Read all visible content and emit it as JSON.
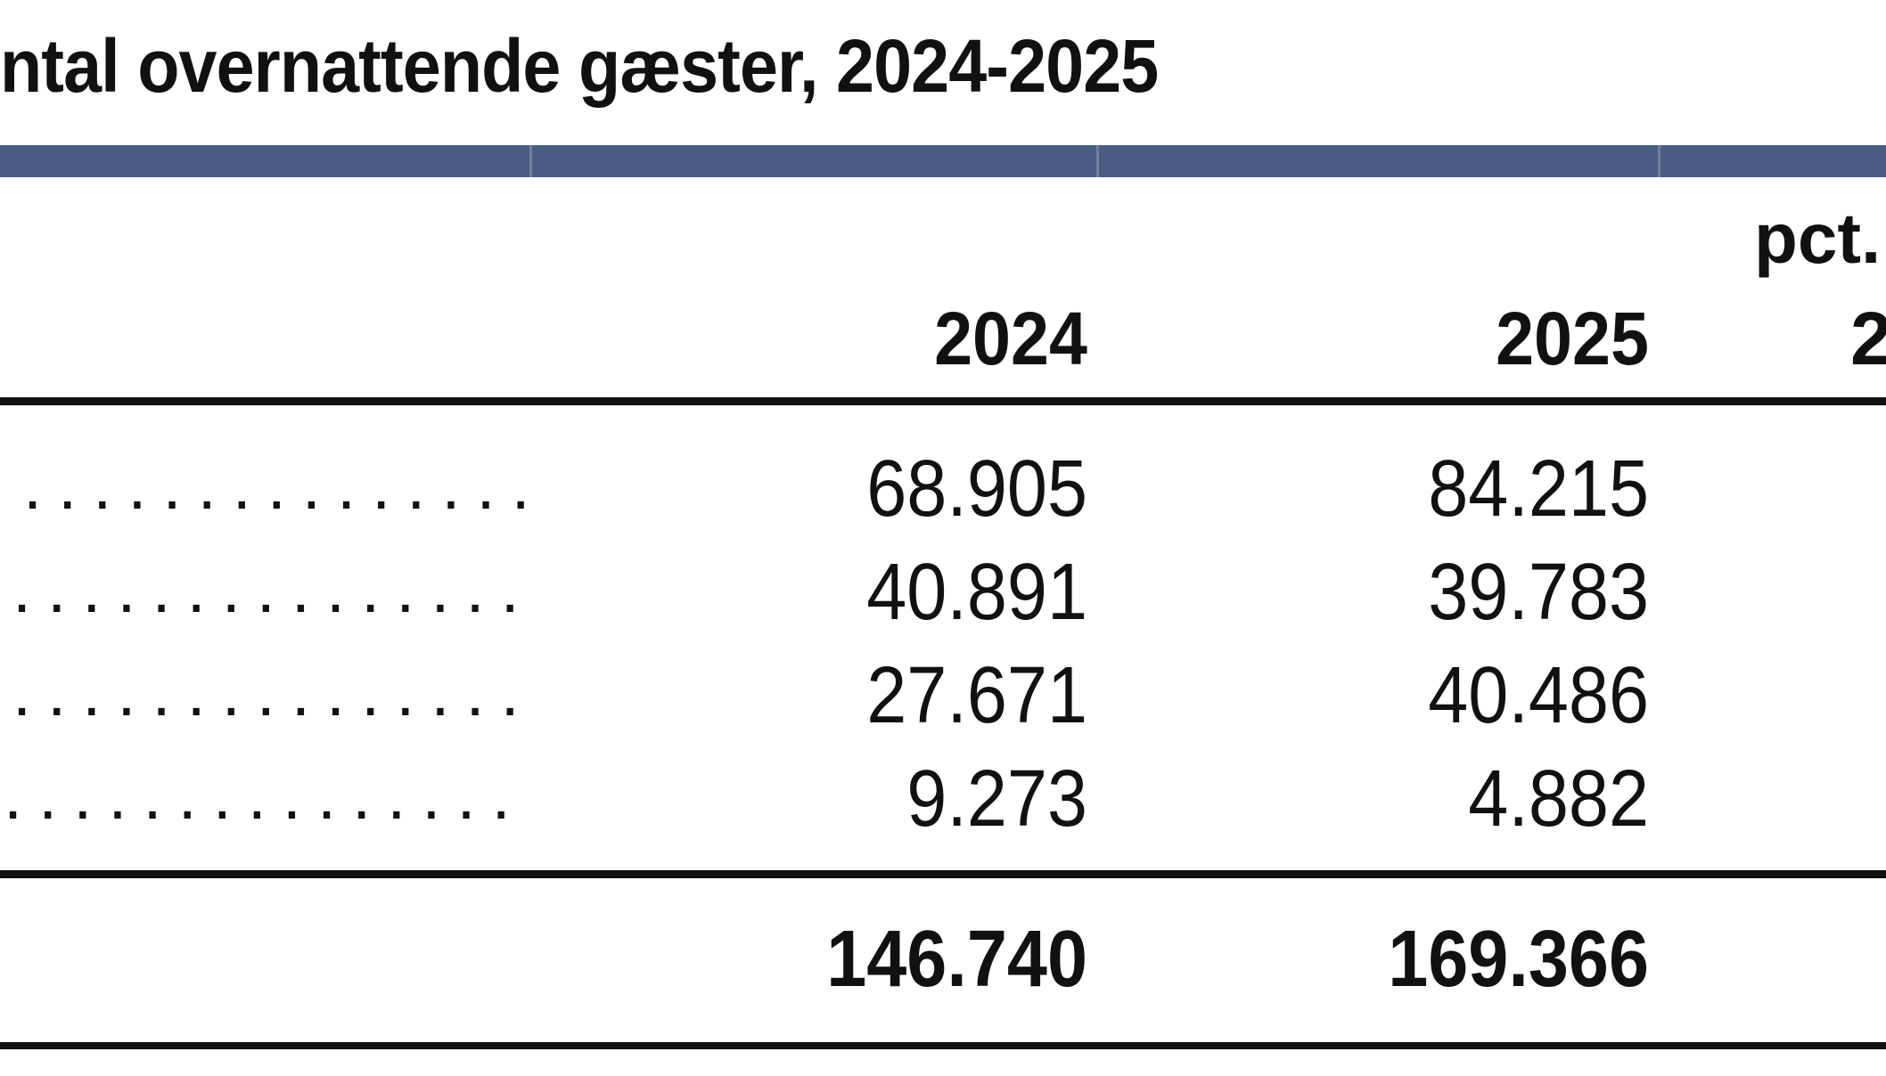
{
  "title": "ntal overnattende gæster, 2024-2025",
  "header": {
    "top_label": "pct.",
    "columns": [
      "2024",
      "2025",
      "2"
    ]
  },
  "rows": [
    {
      "leader": "...............",
      "v2024": "68.905",
      "v2025": "84.215"
    },
    {
      "leader": "...............",
      "v2024": "40.891",
      "v2025": "39.783"
    },
    {
      "leader": "...............",
      "v2024": "27.671",
      "v2025": "40.486"
    },
    {
      "leader": "...............",
      "v2024": "9.273",
      "v2025": "4.882"
    }
  ],
  "total": {
    "v2024": "146.740",
    "v2025": "169.366"
  },
  "colors": {
    "band": "#4a5d85",
    "rule": "#111111",
    "text": "#111111"
  }
}
